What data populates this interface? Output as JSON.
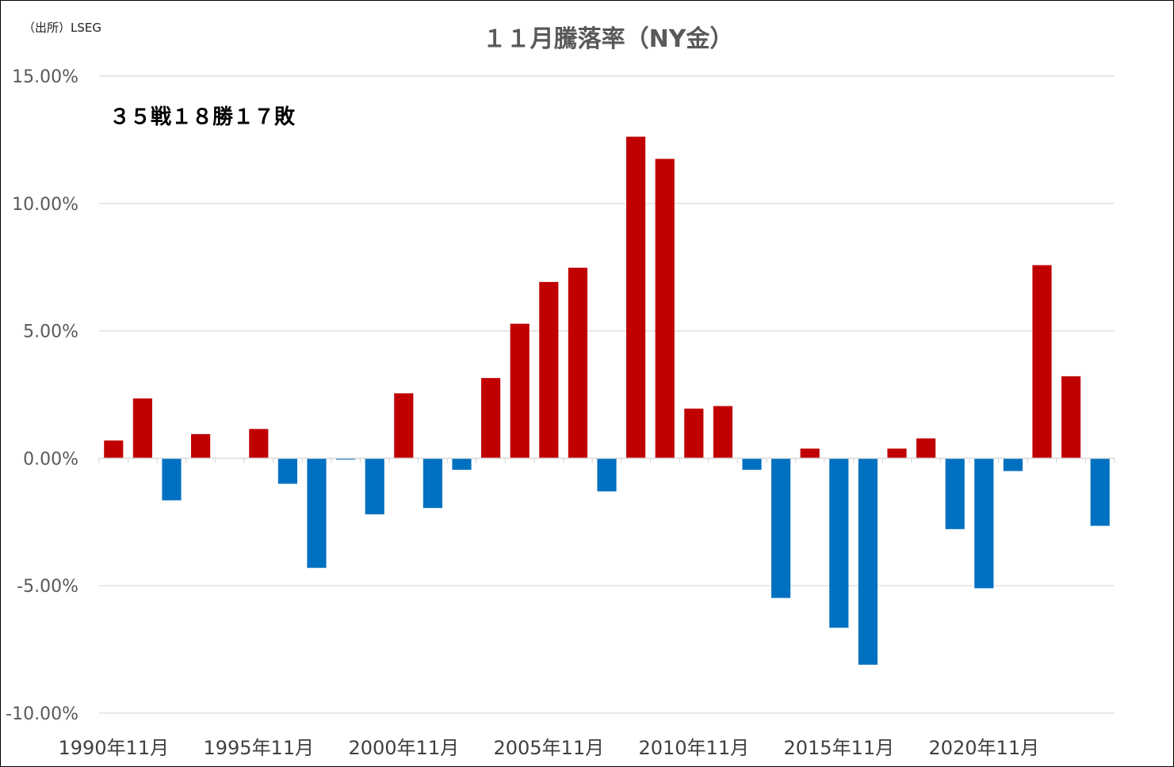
{
  "source_note": "（出所）LSEG",
  "chart_data": {
    "type": "bar",
    "title": "１１月騰落率（NY金）",
    "annotation": "３５戦１８勝１７敗",
    "xlabel": "",
    "ylabel": "",
    "ylim": [
      -10,
      15
    ],
    "yticks": [
      15,
      10,
      5,
      0,
      -5,
      -10
    ],
    "ytick_labels": [
      "15.00%",
      "10.00%",
      "5.00%",
      "0.00%",
      "-5.00%",
      "-10.00%"
    ],
    "xtick_labels": [
      {
        "index": 0,
        "label": "1990年11月"
      },
      {
        "index": 5,
        "label": "1995年11月"
      },
      {
        "index": 10,
        "label": "2000年11月"
      },
      {
        "index": 15,
        "label": "2005年11月"
      },
      {
        "index": 20,
        "label": "2010年11月"
      },
      {
        "index": 25,
        "label": "2015年11月"
      },
      {
        "index": 30,
        "label": "2020年11月"
      }
    ],
    "categories": [
      "1990",
      "1991",
      "1992",
      "1993",
      "1994",
      "1995",
      "1996",
      "1997",
      "1998",
      "1999",
      "2000",
      "2001",
      "2002",
      "2003",
      "2004",
      "2005",
      "2006",
      "2007",
      "2008",
      "2009",
      "2010",
      "2011",
      "2012",
      "2013",
      "2014",
      "2015",
      "2016",
      "2017",
      "2018",
      "2019",
      "2020",
      "2021",
      "2022",
      "2023",
      "2024"
    ],
    "values": [
      0.7,
      2.35,
      -1.65,
      0.95,
      0.0,
      1.15,
      -1.0,
      -4.3,
      -0.05,
      -2.2,
      2.55,
      -1.95,
      -0.45,
      3.15,
      5.28,
      6.92,
      7.48,
      -1.3,
      12.62,
      11.75,
      1.95,
      2.05,
      -0.45,
      -5.48,
      0.38,
      -6.65,
      -8.1,
      0.38,
      0.78,
      -2.78,
      -5.1,
      -0.5,
      7.58,
      3.22,
      -2.65
    ],
    "grid": true,
    "colors": {
      "positive": "#C00000",
      "negative": "#0070C0",
      "grid": "#D9D9D9",
      "zero_axis": "#D9D9D9"
    }
  }
}
